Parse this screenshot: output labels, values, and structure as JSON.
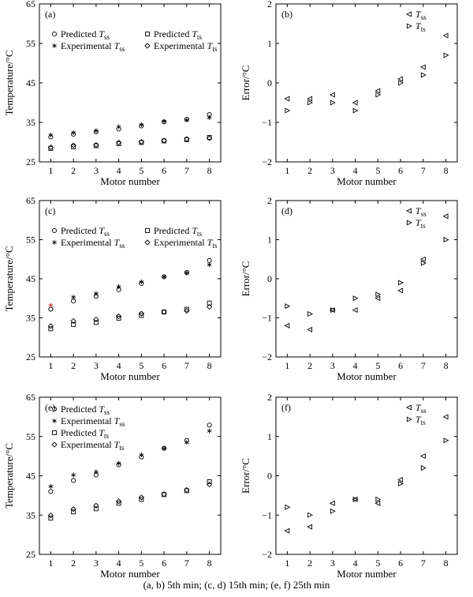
{
  "caption": "(a, b) 5th min; (c, d) 15th min; (e, f) 25th min",
  "colors": {
    "axis": "#000000",
    "marker": "#000000",
    "experimental_red": "#c0392b"
  },
  "chart_data": [
    {
      "panel_label": "(a)",
      "type": "scatter",
      "xlabel": "Motor number",
      "ylabel": "Temperature/°C",
      "xlim": [
        0.5,
        8.5
      ],
      "ylim": [
        25,
        65
      ],
      "xticks": [
        1,
        2,
        3,
        4,
        5,
        6,
        7,
        8
      ],
      "yticks": [
        25,
        35,
        45,
        55,
        65
      ],
      "legend_layout": "grid",
      "legend_placement": "top-left",
      "x": [
        1,
        2,
        3,
        4,
        5,
        6,
        7,
        8
      ],
      "series": [
        {
          "name": "Predicted T_ss",
          "name_base": "Predicted T",
          "name_sub": "ss",
          "marker": "circle",
          "values": [
            31.3,
            32.0,
            32.6,
            33.3,
            34.1,
            35.1,
            35.8,
            37.0
          ]
        },
        {
          "name": "Predicted T_ts",
          "name_base": "Predicted T",
          "name_sub": "ts",
          "marker": "square",
          "values": [
            28.4,
            28.8,
            29.1,
            29.6,
            29.9,
            30.3,
            30.6,
            31.2
          ]
        },
        {
          "name": "Experimental T_ss",
          "name_base": "Experimental T",
          "name_sub": "ss",
          "marker": "star",
          "values": [
            31.8,
            32.4,
            32.9,
            33.9,
            34.4,
            35.3,
            35.6,
            36.2
          ]
        },
        {
          "name": "Experimental T_ts",
          "name_base": "Experimental T",
          "name_sub": "ts",
          "marker": "diamond",
          "values": [
            28.7,
            29.2,
            29.3,
            29.9,
            30.1,
            30.4,
            30.8,
            31.0
          ]
        }
      ]
    },
    {
      "panel_label": "(b)",
      "type": "scatter",
      "xlabel": "Motor number",
      "ylabel": "Error/°C",
      "xlim": [
        0.5,
        8.5
      ],
      "ylim": [
        -2,
        2
      ],
      "xticks": [
        1,
        2,
        3,
        4,
        5,
        6,
        7,
        8
      ],
      "yticks": [
        -2,
        -1,
        0,
        1,
        2
      ],
      "legend_layout": "column",
      "legend_placement": "top-right",
      "x": [
        1,
        2,
        3,
        4,
        5,
        6,
        7,
        8
      ],
      "series": [
        {
          "name": "T_ss",
          "name_base": "T",
          "name_sub": "ss",
          "marker": "tri-left",
          "values": [
            -0.4,
            -0.4,
            -0.3,
            -0.5,
            -0.2,
            0.1,
            0.4,
            1.2
          ]
        },
        {
          "name": "T_ts",
          "name_base": "T",
          "name_sub": "ts",
          "marker": "tri-right",
          "values": [
            -0.7,
            -0.5,
            -0.5,
            -0.7,
            -0.3,
            0.0,
            0.2,
            0.7
          ]
        }
      ]
    },
    {
      "panel_label": "(c)",
      "type": "scatter",
      "xlabel": "Motor number",
      "ylabel": "Temperature/°C",
      "xlim": [
        0.5,
        8.5
      ],
      "ylim": [
        25,
        65
      ],
      "xticks": [
        1,
        2,
        3,
        4,
        5,
        6,
        7,
        8
      ],
      "yticks": [
        25,
        35,
        45,
        55,
        65
      ],
      "legend_layout": "grid",
      "legend_placement": "top-left",
      "x": [
        1,
        2,
        3,
        4,
        5,
        6,
        7,
        8
      ],
      "series": [
        {
          "name": "Predicted T_ss",
          "name_base": "Predicted T",
          "name_sub": "ss",
          "marker": "circle",
          "values": [
            37.2,
            39.3,
            40.5,
            42.2,
            43.8,
            45.5,
            46.6,
            49.7
          ]
        },
        {
          "name": "Predicted T_ts",
          "name_base": "Predicted T",
          "name_sub": "ts",
          "marker": "square",
          "values": [
            32.2,
            33.3,
            33.8,
            34.9,
            35.6,
            36.5,
            37.2,
            38.8
          ]
        },
        {
          "name": "Experimental T_ss",
          "name_base": "Experimental T",
          "name_sub": "ss",
          "marker": "star",
          "values": [
            38.2,
            40.3,
            41.2,
            43.0,
            44.2,
            45.5,
            46.5,
            48.6
          ]
        },
        {
          "name": "Experimental T_ts",
          "name_base": "Experimental T",
          "name_sub": "ts",
          "marker": "diamond",
          "values": [
            32.9,
            34.2,
            34.6,
            35.4,
            36.1,
            36.5,
            36.8,
            37.8
          ]
        }
      ]
    },
    {
      "panel_label": "(d)",
      "type": "scatter",
      "xlabel": "Motor number",
      "ylabel": "Error/°C",
      "xlim": [
        0.5,
        8.5
      ],
      "ylim": [
        -2,
        2
      ],
      "xticks": [
        1,
        2,
        3,
        4,
        5,
        6,
        7,
        8
      ],
      "yticks": [
        -2,
        -1,
        0,
        1,
        2
      ],
      "legend_layout": "column",
      "legend_placement": "top-right",
      "x": [
        1,
        2,
        3,
        4,
        5,
        6,
        7,
        8
      ],
      "series": [
        {
          "name": "T_ss",
          "name_base": "T",
          "name_sub": "ss",
          "marker": "tri-left",
          "values": [
            -1.2,
            -1.3,
            -0.8,
            -0.8,
            -0.5,
            -0.3,
            0.5,
            1.6
          ]
        },
        {
          "name": "T_ts",
          "name_base": "T",
          "name_sub": "ts",
          "marker": "tri-right",
          "values": [
            -0.7,
            -0.9,
            -0.8,
            -0.5,
            -0.4,
            -0.1,
            0.4,
            1.0
          ]
        }
      ]
    },
    {
      "panel_label": "(e)",
      "type": "scatter",
      "xlabel": "Motor number",
      "ylabel": "Temperature/°C",
      "xlim": [
        0.5,
        8.5
      ],
      "ylim": [
        25,
        65
      ],
      "xticks": [
        1,
        2,
        3,
        4,
        5,
        6,
        7,
        8
      ],
      "yticks": [
        25,
        35,
        45,
        55,
        65
      ],
      "legend_layout": "column",
      "legend_placement": "top-left",
      "x": [
        1,
        2,
        3,
        4,
        5,
        6,
        7,
        8
      ],
      "series": [
        {
          "name": "Predicted T_ss",
          "name_base": "Predicted T",
          "name_sub": "ss",
          "marker": "circle",
          "values": [
            41.0,
            43.8,
            45.2,
            47.8,
            49.8,
            52.0,
            54.0,
            57.9
          ]
        },
        {
          "name": "Experimental T_ss",
          "name_base": "Experimental T",
          "name_sub": "ss",
          "marker": "star",
          "values": [
            42.3,
            45.2,
            46.0,
            48.2,
            50.3,
            52.0,
            53.5,
            56.4
          ]
        },
        {
          "name": "Predicted T_ts",
          "name_base": "Predicted T",
          "name_sub": "ts",
          "marker": "square",
          "values": [
            34.2,
            35.8,
            36.6,
            38.0,
            39.0,
            40.2,
            41.2,
            43.5
          ]
        },
        {
          "name": "Experimental T_ts",
          "name_base": "Experimental T",
          "name_sub": "ts",
          "marker": "diamond",
          "values": [
            34.9,
            36.5,
            37.4,
            38.5,
            39.5,
            40.3,
            41.4,
            42.8
          ]
        }
      ]
    },
    {
      "panel_label": "(f)",
      "type": "scatter",
      "xlabel": "Motor number",
      "ylabel": "Error/°C",
      "xlim": [
        0.5,
        8.5
      ],
      "ylim": [
        -2,
        2
      ],
      "xticks": [
        1,
        2,
        3,
        4,
        5,
        6,
        7,
        8
      ],
      "yticks": [
        -2,
        -1,
        0,
        1,
        2
      ],
      "legend_layout": "column",
      "legend_placement": "top-right",
      "x": [
        1,
        2,
        3,
        4,
        5,
        6,
        7,
        8
      ],
      "series": [
        {
          "name": "T_ss",
          "name_base": "T",
          "name_sub": "ss",
          "marker": "tri-left",
          "values": [
            -1.4,
            -1.3,
            -0.7,
            -0.6,
            -0.7,
            -0.1,
            0.5,
            1.5
          ]
        },
        {
          "name": "T_ts",
          "name_base": "T",
          "name_sub": "ts",
          "marker": "tri-right",
          "values": [
            -0.8,
            -1.0,
            -0.9,
            -0.6,
            -0.6,
            -0.2,
            0.2,
            0.9
          ]
        }
      ]
    }
  ]
}
